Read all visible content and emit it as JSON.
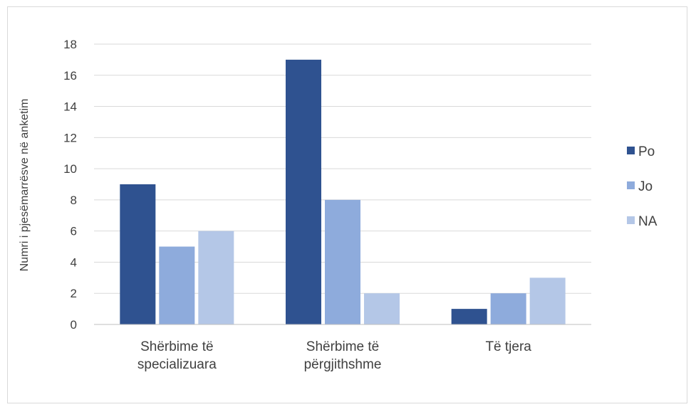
{
  "chart_data": {
    "type": "bar",
    "title": "",
    "xlabel": "",
    "ylabel": "Numri i pjesëmarrësve në anketim",
    "categories": [
      [
        "Shërbime të",
        "specializuara"
      ],
      [
        "Shërbime të",
        "përgjithshme"
      ],
      [
        "Të tjera"
      ]
    ],
    "series": [
      {
        "name": "Po",
        "values": [
          9,
          17,
          1
        ],
        "color": "#2f5290"
      },
      {
        "name": "Jo",
        "values": [
          5,
          8,
          2
        ],
        "color": "#8eabdc"
      },
      {
        "name": "NA",
        "values": [
          6,
          2,
          3
        ],
        "color": "#b4c7e7"
      }
    ],
    "ylim": [
      0,
      18
    ],
    "yticks": [
      0,
      2,
      4,
      6,
      8,
      10,
      12,
      14,
      16,
      18
    ],
    "grid": true,
    "legend_position": "right",
    "colors": {
      "grid": "#d9d9d9",
      "axis": "#bfbfbf",
      "text": "#404040"
    }
  }
}
